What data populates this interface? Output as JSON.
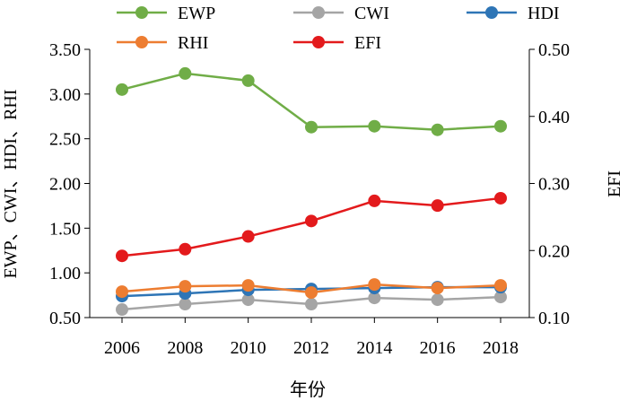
{
  "chart_data": {
    "type": "line",
    "x": [
      "2006",
      "2008",
      "2010",
      "2012",
      "2014",
      "2016",
      "2018"
    ],
    "xlabel": "年份",
    "ylabel_left": "EWP、CWI、HDI、RHI",
    "ylabel_right": "EFI",
    "ylim_left": [
      0.5,
      3.5
    ],
    "yticks_left": [
      "0.50",
      "1.00",
      "1.50",
      "2.00",
      "2.50",
      "3.00",
      "3.50"
    ],
    "ylim_right": [
      0.1,
      0.5
    ],
    "yticks_right": [
      "0.10",
      "0.20",
      "0.30",
      "0.40",
      "0.50"
    ],
    "grid": false,
    "legend_position": "top",
    "series": [
      {
        "name": "EWP",
        "axis": "left",
        "color": "#70ad47",
        "values": [
          3.05,
          3.23,
          3.15,
          2.63,
          2.64,
          2.6,
          2.64
        ]
      },
      {
        "name": "CWI",
        "axis": "left",
        "color": "#a5a5a5",
        "values": [
          0.59,
          0.65,
          0.7,
          0.65,
          0.72,
          0.7,
          0.73
        ]
      },
      {
        "name": "HDI",
        "axis": "left",
        "color": "#2e75b6",
        "values": [
          0.74,
          0.77,
          0.81,
          0.82,
          0.83,
          0.84,
          0.84
        ]
      },
      {
        "name": "RHI",
        "axis": "left",
        "color": "#ed7d31",
        "values": [
          0.79,
          0.85,
          0.86,
          0.78,
          0.87,
          0.83,
          0.86
        ]
      },
      {
        "name": "EFI",
        "axis": "right",
        "color": "#e31a1c",
        "values": [
          0.192,
          0.202,
          0.221,
          0.244,
          0.274,
          0.267,
          0.278
        ]
      }
    ]
  }
}
